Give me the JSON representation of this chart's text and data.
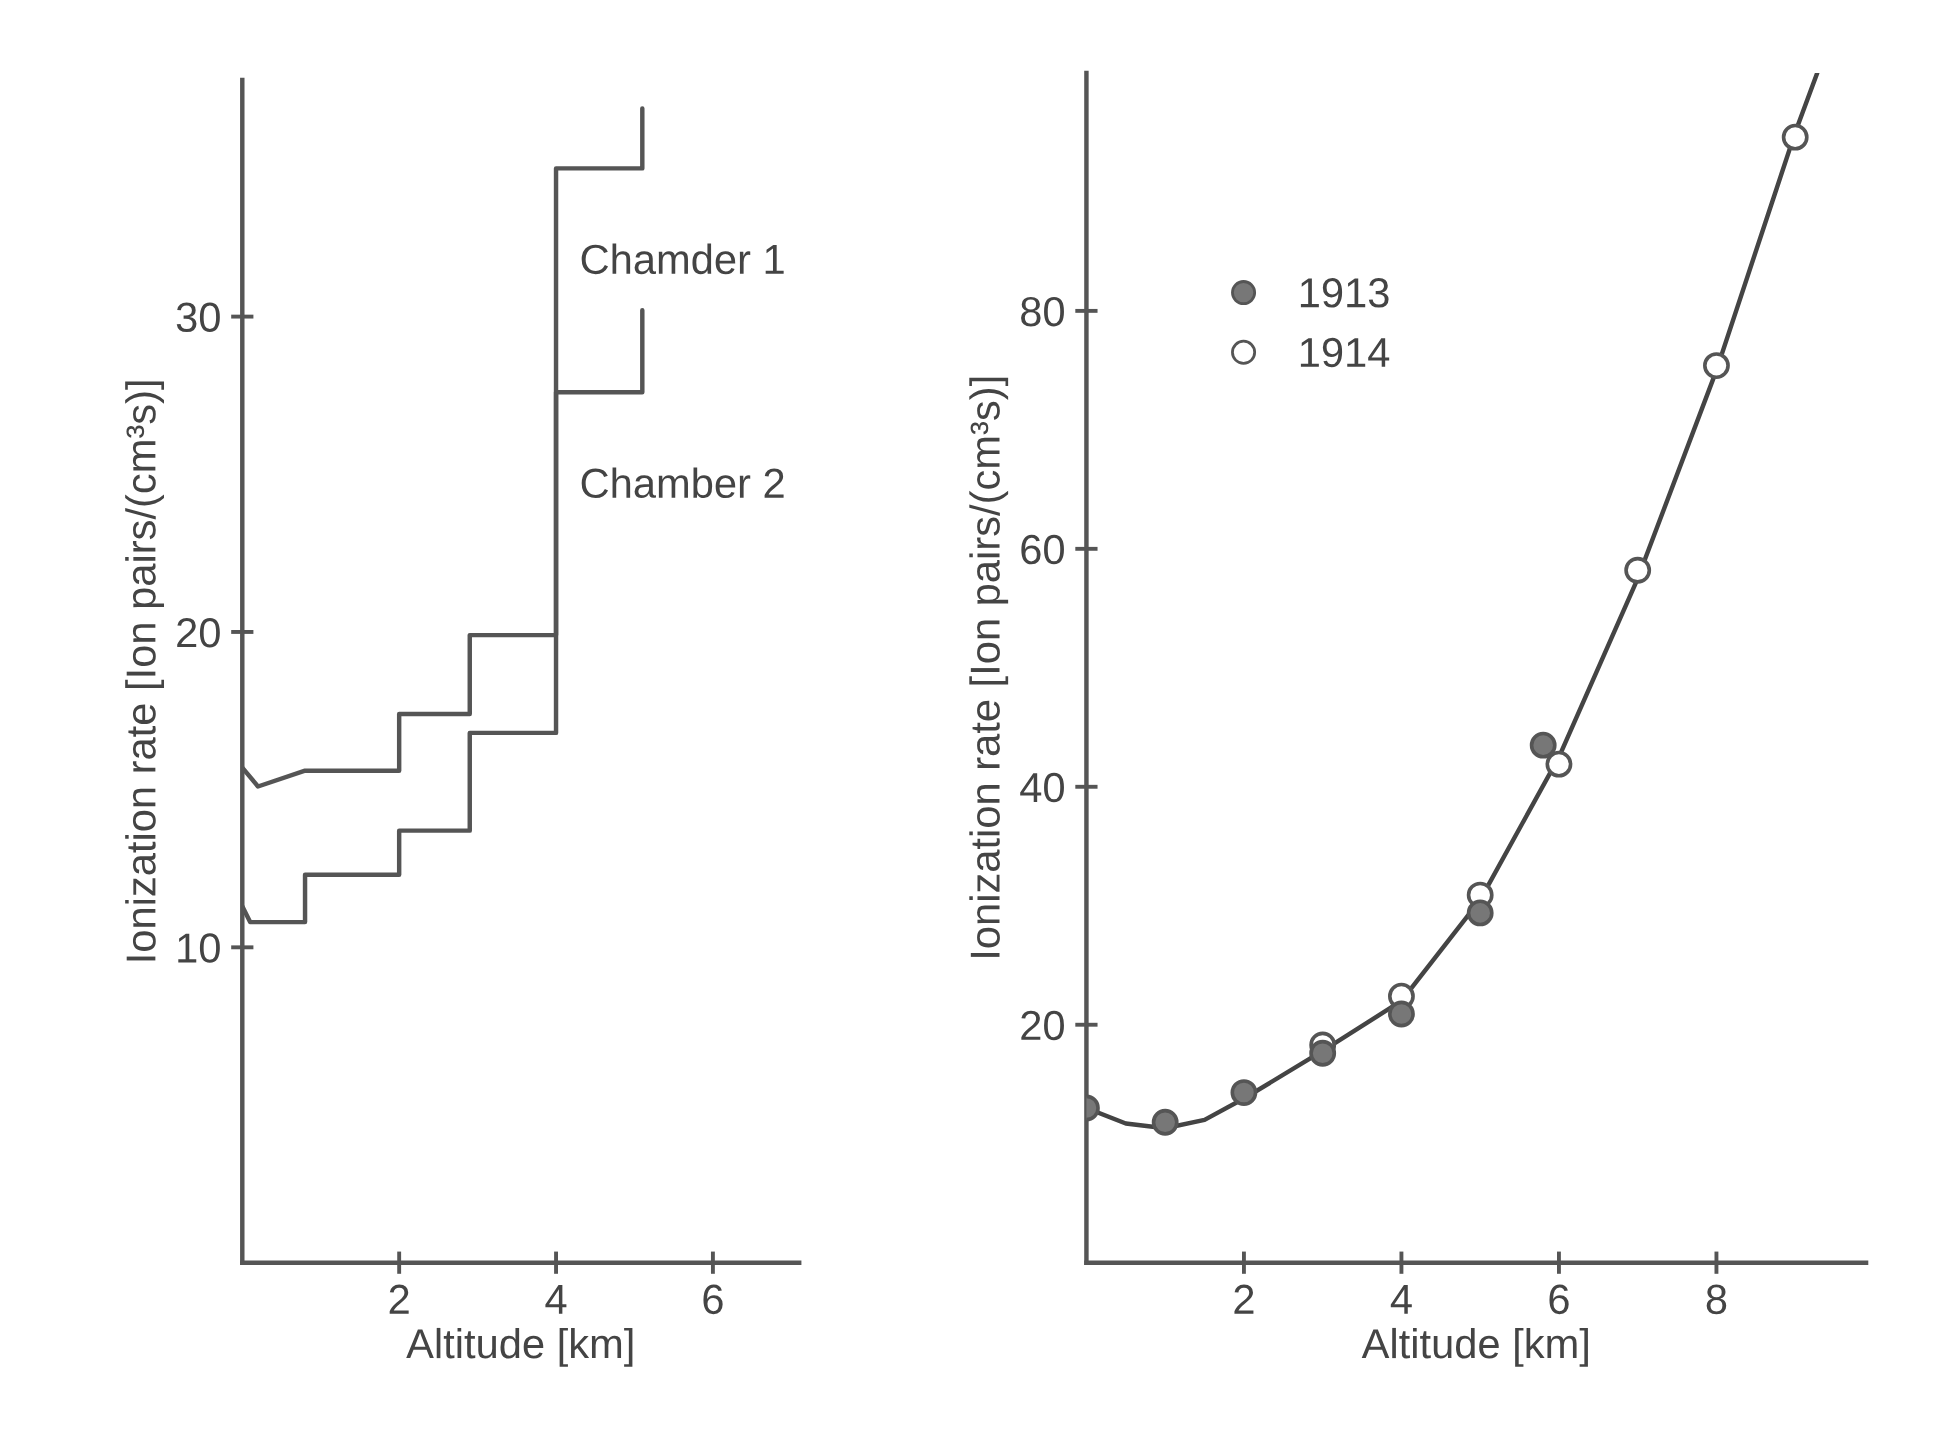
{
  "chart_data": [
    {
      "type": "line",
      "xlabel": "Altitude [km]",
      "ylabel": "Ionization rate [Ion pairs/(cm³s)]",
      "xlim": [
        0,
        7.1
      ],
      "ylim": [
        0,
        37.5
      ],
      "xticks": [
        2,
        4,
        6
      ],
      "yticks": [
        10,
        20,
        30
      ],
      "grid": false,
      "legend": false,
      "marker": "none",
      "series": [
        {
          "name": "Chamder 1",
          "color": "#555555",
          "x": [
            0,
            0.2,
            0.8,
            2,
            2,
            2.9,
            2.9,
            4,
            4,
            5.1,
            5.1
          ],
          "values": [
            15.7,
            15.1,
            15.6,
            15.6,
            17.4,
            17.4,
            19.9,
            19.9,
            34.7,
            34.7,
            36.6
          ]
        },
        {
          "name": "Chamber 2",
          "color": "#555555",
          "x": [
            0,
            0.1,
            0.8,
            0.8,
            2,
            2,
            2.9,
            2.9,
            4,
            4,
            5.1,
            5.1
          ],
          "values": [
            11.3,
            10.8,
            10.8,
            12.3,
            12.3,
            13.7,
            13.7,
            16.8,
            16.8,
            27.6,
            27.6,
            30.2
          ]
        }
      ]
    },
    {
      "type": "scatter",
      "xlabel": "Altitude [km]",
      "ylabel": "Ionization rate [Ion pairs/(cm³s)]",
      "xlim": [
        0,
        9.9
      ],
      "ylim": [
        0,
        100
      ],
      "xticks": [
        2,
        4,
        6,
        8
      ],
      "yticks": [
        20,
        40,
        60,
        80
      ],
      "grid": false,
      "legend": "top left",
      "series": [
        {
          "type": "line",
          "color": "#444444",
          "marker": "none",
          "x": [
            0,
            0.5,
            1,
            1.5,
            2,
            3,
            4,
            5,
            6,
            7,
            8,
            9,
            9.28
          ],
          "values": [
            13,
            11.7,
            11.3,
            12,
            13.8,
            17.8,
            22,
            30.5,
            42.5,
            57.5,
            75,
            95,
            100
          ]
        },
        {
          "name": "1913",
          "color": "#777777",
          "marker": "circle",
          "x": [
            0,
            1,
            2,
            3,
            4,
            5,
            5.8
          ],
          "values": [
            13,
            11.8,
            14.3,
            17.6,
            20.9,
            29.4,
            43.5
          ]
        },
        {
          "name": "1914",
          "color": "#ffffff",
          "marker": "circle",
          "x": [
            3,
            4,
            5,
            6,
            7,
            8,
            9
          ],
          "values": [
            18.3,
            22.4,
            30.9,
            41.9,
            58.2,
            75.4,
            94.6
          ]
        }
      ]
    }
  ]
}
